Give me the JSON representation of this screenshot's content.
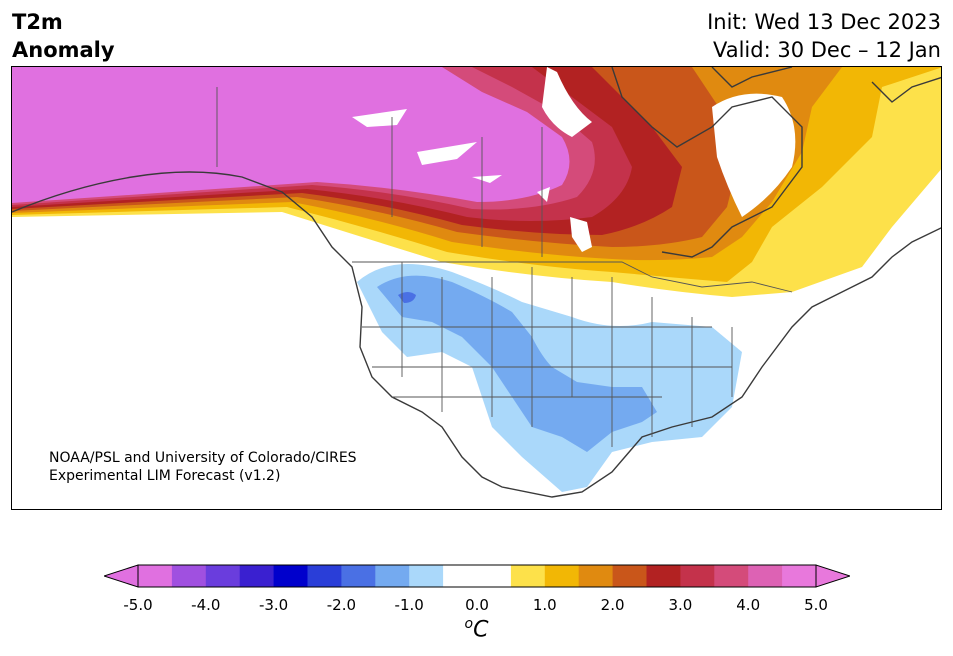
{
  "header": {
    "title_line1": "T2m",
    "title_line2": "Anomaly",
    "init": "Init: Wed 13 Dec 2023",
    "valid": "Valid: 30 Dec – 12 Jan"
  },
  "credit": {
    "line1": "NOAA/PSL and University of Colorado/CIRES",
    "line2": "Experimental LIM Forecast (v1.2)"
  },
  "colorbar": {
    "colors": [
      "#e070e0",
      "#a050e0",
      "#6a3ddd",
      "#3a20d0",
      "#0000cc",
      "#2a3ed8",
      "#4a70e4",
      "#74aaf0",
      "#aad8fa",
      "#ffffff",
      "#ffffff",
      "#fde14a",
      "#f2b705",
      "#e08a10",
      "#c9561a",
      "#b22222",
      "#c4324b",
      "#d44b7a",
      "#dd62b4",
      "#e878dc"
    ],
    "ticks": [
      "-5.0",
      "-4.0",
      "-3.0",
      "-2.0",
      "-1.0",
      "0.0",
      "1.0",
      "2.0",
      "3.0",
      "4.0",
      "5.0"
    ],
    "unit_sup": "o",
    "unit_main": "C"
  },
  "map": {
    "region": "North America",
    "variable": "2m temperature anomaly",
    "warm_anomaly_max": 5.0,
    "cold_anomaly_min": -2.0
  }
}
